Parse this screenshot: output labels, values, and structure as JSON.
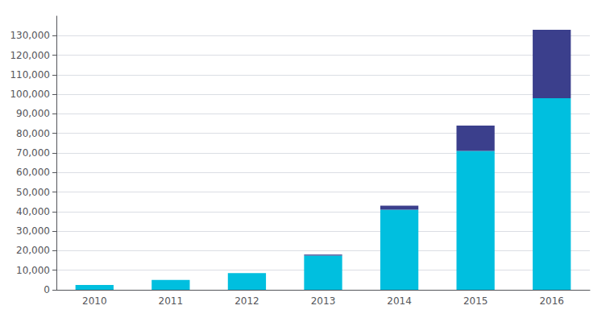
{
  "chart_data": {
    "type": "bar",
    "stacked": true,
    "grid": true,
    "categories": [
      "2010",
      "2011",
      "2012",
      "2013",
      "2014",
      "2015",
      "2016"
    ],
    "series": [
      {
        "color": "#00BFDF",
        "values": [
          2500,
          5000,
          8500,
          17500,
          41000,
          71000,
          98000
        ]
      },
      {
        "color": "#3B3F8C",
        "values": [
          0,
          0,
          0,
          500,
          2000,
          13000,
          35000
        ]
      }
    ],
    "ylim": [
      0,
      140000
    ],
    "yticks": [
      0,
      {
        "value": 10000,
        "label": "10,000"
      },
      {
        "value": 20000,
        "label": "20,000"
      },
      {
        "value": 30000,
        "label": "30,000"
      },
      {
        "value": 40000,
        "label": "40,000"
      },
      {
        "value": 50000,
        "label": "50,000"
      },
      {
        "value": 60000,
        "label": "60,000"
      },
      {
        "value": 70000,
        "label": "70,000"
      },
      {
        "value": 80000,
        "label": "80,000"
      },
      {
        "value": 90000,
        "label": "90,000"
      },
      {
        "value": 100000,
        "label": "100,000"
      },
      {
        "value": 110000,
        "label": "110,000"
      },
      {
        "value": 120000,
        "label": "120,000"
      },
      {
        "value": 130000,
        "label": "130,000"
      }
    ]
  }
}
